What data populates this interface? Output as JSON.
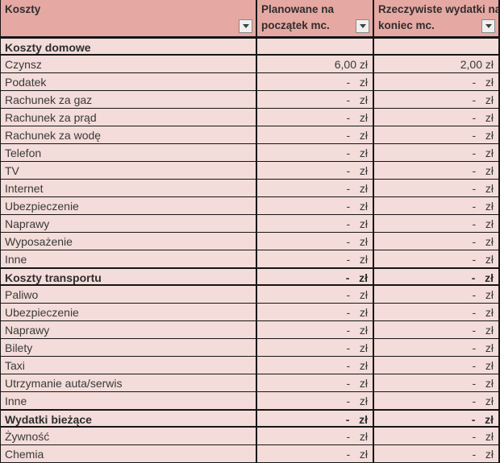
{
  "colors": {
    "header_bg": "#e6a8a2",
    "row_bg": "#f3dcd9",
    "grid_border": "#161616",
    "text": "#3a3a3a",
    "filter_button_bg": "#efefef"
  },
  "table": {
    "columns": [
      {
        "label": "Koszty",
        "label_lines": [
          "Koszty",
          ""
        ]
      },
      {
        "label": "Planowane na początek mc.",
        "label_lines": [
          "Planowane na",
          "początek mc."
        ]
      },
      {
        "label": "Rzeczywiste wydatki na koniec mc.",
        "label_lines": [
          "Rzeczywiste wydatki na",
          "koniec mc."
        ]
      }
    ],
    "rows": [
      {
        "label": "Koszty domowe",
        "type": "section",
        "planned": "",
        "actual": ""
      },
      {
        "label": "Czynsz",
        "type": "item",
        "planned": "6,00 zł",
        "actual": "2,00 zł"
      },
      {
        "label": "Podatek",
        "type": "item",
        "planned": "-   zł",
        "actual": "-   zł"
      },
      {
        "label": "Rachunek za gaz",
        "type": "item",
        "planned": "-   zł",
        "actual": "-   zł"
      },
      {
        "label": "Rachunek za prąd",
        "type": "item",
        "planned": "-   zł",
        "actual": "-   zł"
      },
      {
        "label": "Rachunek za wodę",
        "type": "item",
        "planned": "-   zł",
        "actual": "-   zł"
      },
      {
        "label": "Telefon",
        "type": "item",
        "planned": "-   zł",
        "actual": "-   zł"
      },
      {
        "label": "TV",
        "type": "item",
        "planned": "-   zł",
        "actual": "-   zł"
      },
      {
        "label": "Internet",
        "type": "item",
        "planned": "-   zł",
        "actual": "-   zł"
      },
      {
        "label": "Ubezpieczenie",
        "type": "item",
        "planned": "-   zł",
        "actual": "-   zł"
      },
      {
        "label": "Naprawy",
        "type": "item",
        "planned": "-   zł",
        "actual": "-   zł"
      },
      {
        "label": "Wyposażenie",
        "type": "item",
        "planned": "-   zł",
        "actual": "-   zł"
      },
      {
        "label": "Inne",
        "type": "item",
        "planned": "-   zł",
        "actual": "-   zł"
      },
      {
        "label": "Koszty transportu",
        "type": "section",
        "planned": "-   zł",
        "actual": "-   zł"
      },
      {
        "label": "Paliwo",
        "type": "item",
        "planned": "-   zł",
        "actual": "-   zł"
      },
      {
        "label": "Ubezpieczenie",
        "type": "item",
        "planned": "-   zł",
        "actual": "-   zł"
      },
      {
        "label": "Naprawy",
        "type": "item",
        "planned": "-   zł",
        "actual": "-   zł"
      },
      {
        "label": "Bilety",
        "type": "item",
        "planned": "-   zł",
        "actual": "-   zł"
      },
      {
        "label": "Taxi",
        "type": "item",
        "planned": "-   zł",
        "actual": "-   zł"
      },
      {
        "label": "Utrzymanie auta/serwis",
        "type": "item",
        "planned": "-   zł",
        "actual": "-   zł"
      },
      {
        "label": "Inne",
        "type": "item",
        "planned": "-   zł",
        "actual": "-   zł"
      },
      {
        "label": "Wydatki bieżące",
        "type": "section",
        "planned": "-   zł",
        "actual": "-   zł"
      },
      {
        "label": "Żywność",
        "type": "item",
        "planned": "-   zł",
        "actual": "-   zł"
      },
      {
        "label": "Chemia",
        "type": "item",
        "planned": "-   zł",
        "actual": "-   zł"
      }
    ]
  }
}
